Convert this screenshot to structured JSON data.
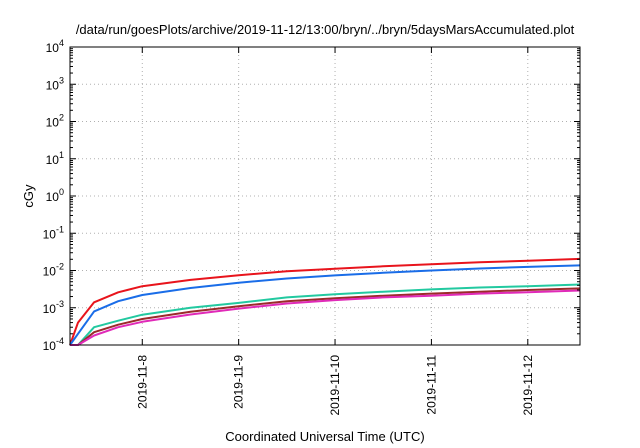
{
  "chart_data": {
    "type": "line",
    "title": "/data/run/goesPlots/archive/2019-11-12/13:00/bryn/../bryn/5daysMarsAccumulated.plot",
    "xlabel": "Coordinated Universal Time (UTC)",
    "ylabel": "cGy",
    "x_scale": "time",
    "y_scale": "log",
    "xlim": [
      "2019-11-07 06:00",
      "2019-11-12 13:00"
    ],
    "ylim": [
      0.0001,
      10000
    ],
    "grid": true,
    "legend": "none",
    "x_ticks": [
      "2019-11-8",
      "2019-11-9",
      "2019-11-10",
      "2019-11-11",
      "2019-11-12"
    ],
    "x_tick_dates": [
      "2019-11-08 00:00",
      "2019-11-09 00:00",
      "2019-11-10 00:00",
      "2019-11-11 00:00",
      "2019-11-12 00:00"
    ],
    "y_ticks": [
      {
        "value": 0.0001,
        "base": "10",
        "exp": "-4"
      },
      {
        "value": 0.001,
        "base": "10",
        "exp": "-3"
      },
      {
        "value": 0.01,
        "base": "10",
        "exp": "-2"
      },
      {
        "value": 0.1,
        "base": "10",
        "exp": "-1"
      },
      {
        "value": 1,
        "base": "10",
        "exp": "0"
      },
      {
        "value": 10,
        "base": "10",
        "exp": "1"
      },
      {
        "value": 100,
        "base": "10",
        "exp": "2"
      },
      {
        "value": 1000,
        "base": "10",
        "exp": "3"
      },
      {
        "value": 10000,
        "base": "10",
        "exp": "4"
      }
    ],
    "x": [
      "2019-11-07 06:00",
      "2019-11-07 08:00",
      "2019-11-07 12:00",
      "2019-11-07 18:00",
      "2019-11-08 00:00",
      "2019-11-08 12:00",
      "2019-11-09 00:00",
      "2019-11-09 12:00",
      "2019-11-10 00:00",
      "2019-11-10 12:00",
      "2019-11-11 00:00",
      "2019-11-11 12:00",
      "2019-11-12 00:00",
      "2019-11-12 13:00"
    ],
    "series": [
      {
        "color": "#e8141c",
        "values": [
          0.0001,
          0.0004,
          0.0014,
          0.0026,
          0.0038,
          0.0056,
          0.0075,
          0.0095,
          0.0112,
          0.013,
          0.0148,
          0.0166,
          0.0183,
          0.0205
        ]
      },
      {
        "color": "#1a6de8",
        "values": [
          0.0001,
          0.0002,
          0.0008,
          0.0015,
          0.0022,
          0.0034,
          0.0047,
          0.0061,
          0.0074,
          0.0087,
          0.01,
          0.0113,
          0.0125,
          0.0137
        ]
      },
      {
        "color": "#22c9a0",
        "values": [
          0.0001,
          0.0001,
          0.0003,
          0.00045,
          0.00065,
          0.001,
          0.00135,
          0.0019,
          0.0023,
          0.0027,
          0.0031,
          0.0035,
          0.0038,
          0.0042
        ]
      },
      {
        "color": "#9b2a2a",
        "values": [
          0.0001,
          0.0001,
          0.00022,
          0.00035,
          0.0005,
          0.00078,
          0.0011,
          0.0015,
          0.0018,
          0.0021,
          0.0024,
          0.0027,
          0.003,
          0.0033
        ]
      },
      {
        "color": "#e02ab8",
        "values": [
          0.0001,
          0.0001,
          0.00018,
          0.0003,
          0.00042,
          0.00066,
          0.00095,
          0.0013,
          0.0016,
          0.0019,
          0.0021,
          0.0024,
          0.0026,
          0.0029
        ]
      }
    ]
  }
}
